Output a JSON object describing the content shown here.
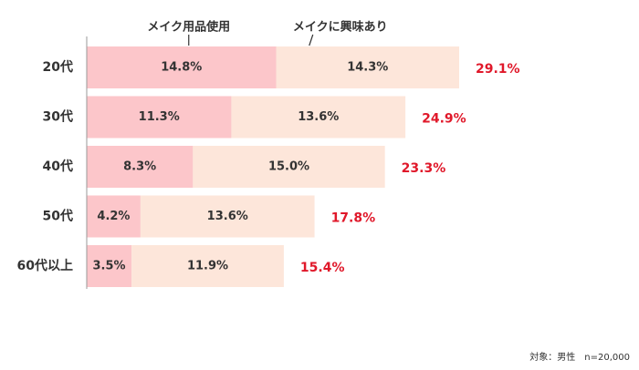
{
  "chart_data": {
    "type": "stacked-bar-horizontal",
    "categories": [
      "20代",
      "30代",
      "40代",
      "50代",
      "60代以上"
    ],
    "series": [
      {
        "name": "メイク用品使用",
        "color": "#fcc6ca",
        "values": [
          14.8,
          11.3,
          8.3,
          4.2,
          3.5
        ],
        "value_labels": [
          "14.8%",
          "11.3%",
          "8.3%",
          "4.2%",
          "3.5%"
        ]
      },
      {
        "name": "メイクに興味あり",
        "color": "#fde6da",
        "values": [
          14.3,
          13.6,
          15.0,
          13.6,
          11.9
        ],
        "value_labels": [
          "14.3%",
          "13.6%",
          "15.0%",
          "13.6%",
          "11.9%"
        ]
      }
    ],
    "totals": {
      "color": "#e0182a",
      "values": [
        29.1,
        24.9,
        23.3,
        17.8,
        15.4
      ],
      "value_labels": [
        "29.1%",
        "24.9%",
        "23.3%",
        "17.8%",
        "15.4%"
      ]
    },
    "note": "対象：男性　n=20,000"
  }
}
